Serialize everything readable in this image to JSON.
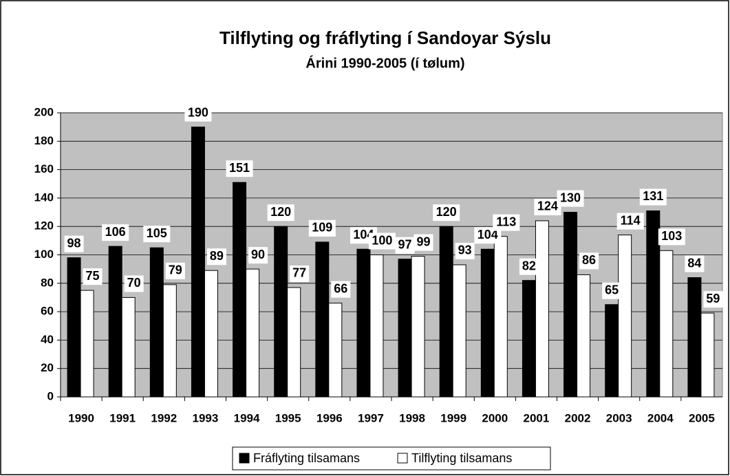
{
  "chart_data": {
    "type": "bar",
    "title": "Tilflyting og fráflyting í Sandoyar Sýslu",
    "subtitle": "Árini 1990-2005 (í tølum)",
    "categories": [
      "1990",
      "1991",
      "1992",
      "1993",
      "1994",
      "1995",
      "1996",
      "1997",
      "1998",
      "1999",
      "2000",
      "2001",
      "2002",
      "2003",
      "2004",
      "2005"
    ],
    "series": [
      {
        "name": "Fráflyting tilsamans",
        "color": "#000000",
        "values": [
          98,
          106,
          105,
          190,
          151,
          120,
          109,
          104,
          97,
          120,
          104,
          82,
          130,
          65,
          131,
          84
        ]
      },
      {
        "name": "Tilflyting tilsamans",
        "color": "#ffffff",
        "values": [
          75,
          70,
          79,
          89,
          90,
          77,
          66,
          100,
          99,
          93,
          113,
          124,
          86,
          114,
          103,
          59
        ]
      }
    ],
    "ylim": [
      0,
      200
    ],
    "yticks": [
      0,
      20,
      40,
      60,
      80,
      100,
      120,
      140,
      160,
      180,
      200
    ],
    "grid": true,
    "legend": "bottom",
    "plot_background": "#c0c0c0"
  }
}
